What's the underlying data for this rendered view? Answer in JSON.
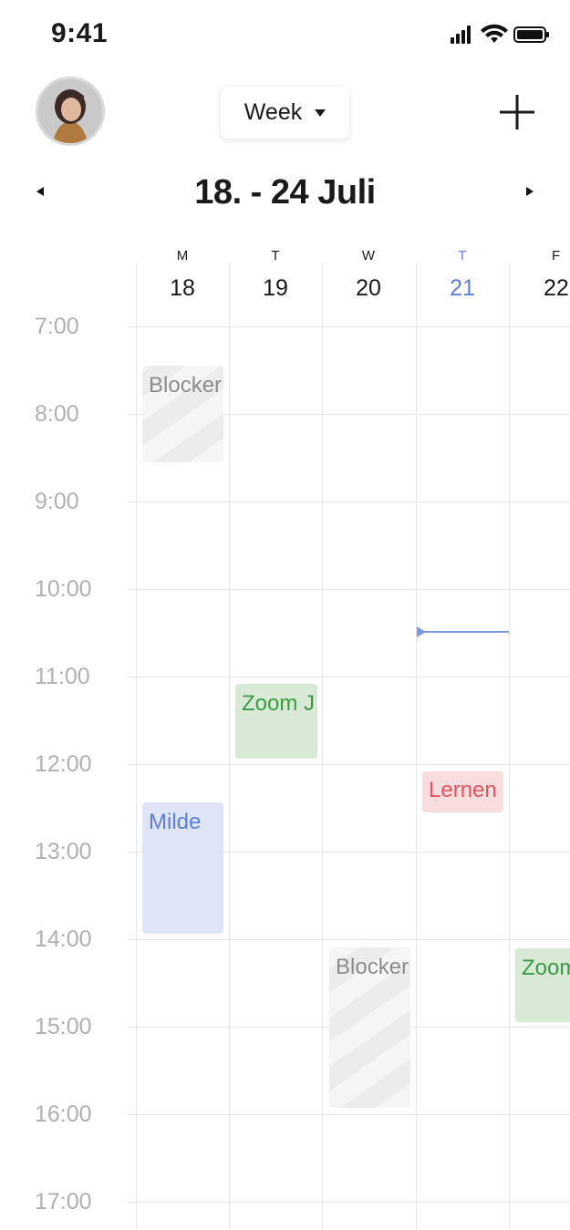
{
  "status_bar": {
    "time": "9:41"
  },
  "header": {
    "view_label": "Week"
  },
  "week": {
    "title": "18. - 24 Juli"
  },
  "days": [
    {
      "letter": "M",
      "number": "18"
    },
    {
      "letter": "T",
      "number": "19"
    },
    {
      "letter": "W",
      "number": "20"
    },
    {
      "letter": "T",
      "number": "21"
    },
    {
      "letter": "F",
      "number": "22"
    }
  ],
  "time_labels": [
    "7:00",
    "8:00",
    "9:00",
    "10:00",
    "11:00",
    "12:00",
    "13:00",
    "14:00",
    "15:00",
    "16:00",
    "17:00"
  ],
  "events": {
    "blocker_mon": "Blocker",
    "zoom_tue": "Zoom J",
    "milde_mon": "Milde",
    "lernen_thu": "Lernen",
    "blocker_wed": "Blocker",
    "zoom_fri": "Zoom"
  },
  "colors": {
    "accent": "#5b7fdb",
    "green": "#3a9a45",
    "red": "#e05660"
  },
  "icons": {
    "add": "plus-icon",
    "prev": "triangle-left-icon",
    "next": "triangle-right-icon"
  }
}
